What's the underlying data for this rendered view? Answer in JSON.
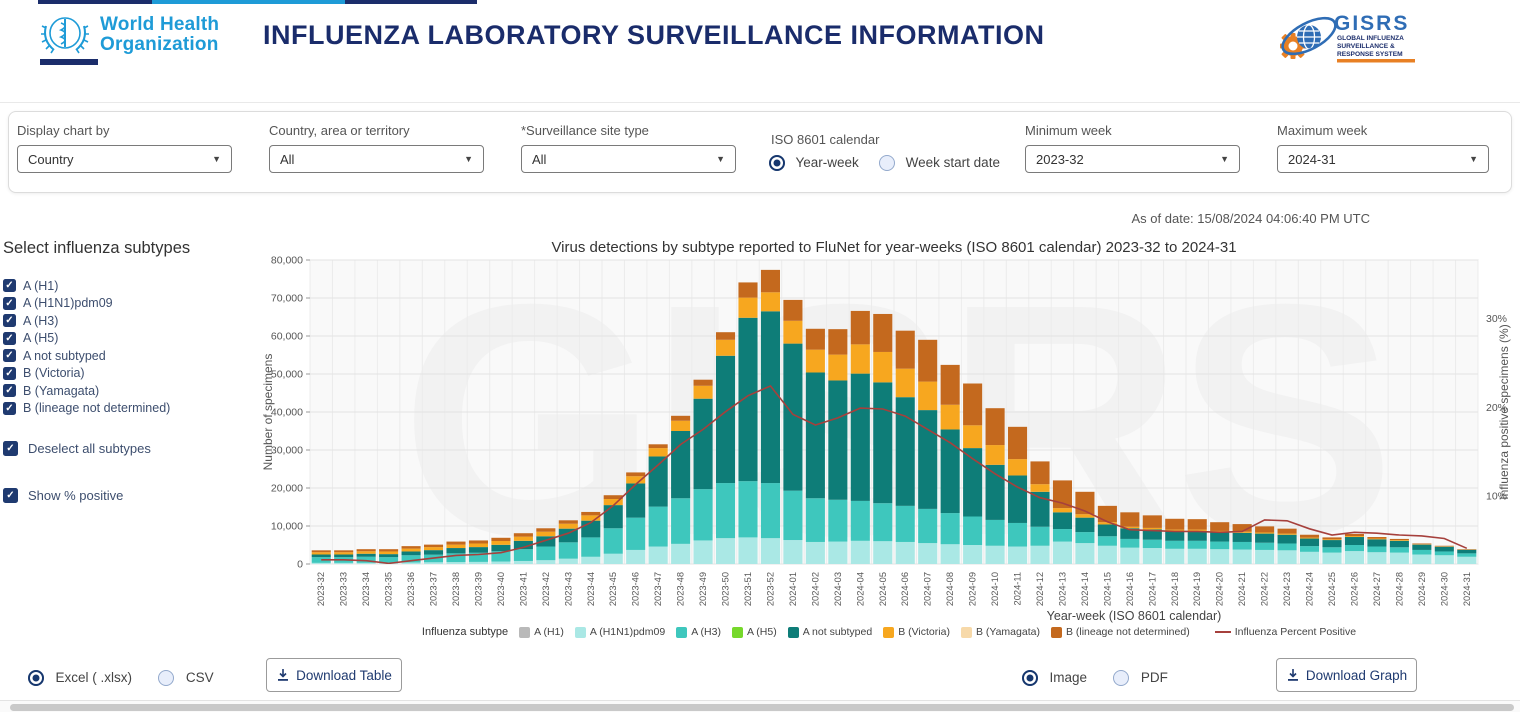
{
  "header": {
    "who_line1": "World Health",
    "who_line2": "Organization",
    "title": "INFLUENZA LABORATORY SURVEILLANCE INFORMATION",
    "gisrs_acronym": "GISRS",
    "gisrs_sub1": "GLOBAL INFLUENZA",
    "gisrs_sub2": "SURVEILLANCE &",
    "gisrs_sub3": "RESPONSE SYSTEM"
  },
  "filters": {
    "display_chart_by": {
      "label": "Display chart by",
      "value": "Country"
    },
    "country": {
      "label": "Country, area or territory",
      "value": "All"
    },
    "site_type": {
      "label": "*Surveillance site type",
      "value": "All"
    },
    "calendar": {
      "label": "ISO 8601 calendar",
      "options": [
        {
          "label": "Year-week",
          "selected": true
        },
        {
          "label": "Week start date",
          "selected": false
        }
      ]
    },
    "min_week": {
      "label": "Minimum week",
      "value": "2023-32"
    },
    "max_week": {
      "label": "Maximum week",
      "value": "2024-31"
    }
  },
  "as_of": "As of date: 15/08/2024 04:06:40 PM UTC",
  "sidebar": {
    "title": "Select influenza subtypes",
    "subtypes": [
      "A (H1)",
      "A (H1N1)pdm09",
      "A (H3)",
      "A (H5)",
      "A not subtyped",
      "B (Victoria)",
      "B (Yamagata)",
      "B (lineage not determined)"
    ],
    "deselect_all": "Deselect all subtypes",
    "show_percent": "Show % positive"
  },
  "chart_data": {
    "type": "bar",
    "subtype": "stacked bars with overlaid percent-positive line",
    "title": "Virus detections by subtype reported to FluNet for year-weeks (ISO 8601 calendar) 2023-32 to 2024-31",
    "xlabel": "Year-week (ISO 8601 calendar)",
    "ylabel": "Number of specimens",
    "y2label": "Influenza positive specimens (%)",
    "ylim": [
      0,
      80000
    ],
    "y_ticks": [
      0,
      10000,
      20000,
      30000,
      40000,
      50000,
      60000,
      70000,
      80000
    ],
    "y2_range": [
      2.33,
      36.6
    ],
    "y2_ticks": [
      10,
      20,
      30
    ],
    "grid": true,
    "watermark": "GISRS",
    "legend_title": "Influenza subtype",
    "categories": [
      "2023-32",
      "2023-33",
      "2023-34",
      "2023-35",
      "2023-36",
      "2023-37",
      "2023-38",
      "2023-39",
      "2023-40",
      "2023-41",
      "2023-42",
      "2023-43",
      "2023-44",
      "2023-45",
      "2023-46",
      "2023-47",
      "2023-48",
      "2023-49",
      "2023-50",
      "2023-51",
      "2023-52",
      "2024-01",
      "2024-02",
      "2024-03",
      "2024-04",
      "2024-05",
      "2024-06",
      "2024-07",
      "2024-08",
      "2024-09",
      "2024-10",
      "2024-11",
      "2024-12",
      "2024-13",
      "2024-14",
      "2024-15",
      "2024-16",
      "2024-17",
      "2024-18",
      "2024-19",
      "2024-20",
      "2024-21",
      "2024-22",
      "2024-23",
      "2024-24",
      "2024-25",
      "2024-26",
      "2024-27",
      "2024-28",
      "2024-29",
      "2024-30",
      "2024-31"
    ],
    "series": [
      {
        "name": "A (H1)",
        "color": "#b9b9b9",
        "values": [
          0,
          0,
          0,
          0,
          0,
          0,
          0,
          0,
          0,
          0,
          0,
          0,
          0,
          0,
          0,
          0,
          0,
          0,
          0,
          0,
          0,
          0,
          0,
          0,
          0,
          0,
          0,
          0,
          0,
          0,
          0,
          0,
          0,
          0,
          0,
          0,
          0,
          0,
          0,
          0,
          0,
          0,
          0,
          0,
          0,
          0,
          0,
          0,
          0,
          0,
          0,
          0
        ]
      },
      {
        "name": "A (H1N1)pdm09",
        "color": "#aae8e5",
        "values": [
          300,
          300,
          300,
          300,
          400,
          450,
          500,
          550,
          650,
          800,
          1000,
          1400,
          1900,
          2700,
          3700,
          4600,
          5300,
          6200,
          6800,
          7000,
          6800,
          6300,
          5800,
          5900,
          6100,
          6000,
          5800,
          5500,
          5200,
          5000,
          4800,
          4600,
          4800,
          5900,
          5500,
          4800,
          4300,
          4200,
          4000,
          4000,
          3900,
          3800,
          3700,
          3600,
          3200,
          3000,
          3400,
          3100,
          3000,
          2500,
          2300,
          1900
        ]
      },
      {
        "name": "A (H3)",
        "color": "#3ec7bd",
        "values": [
          1500,
          1500,
          1600,
          1500,
          1900,
          2000,
          2300,
          2400,
          2700,
          3100,
          3600,
          4300,
          5100,
          6700,
          8500,
          10500,
          12000,
          13500,
          14500,
          14800,
          14500,
          13000,
          11500,
          11000,
          10500,
          10000,
          9500,
          9000,
          8200,
          7500,
          6800,
          6200,
          5000,
          3300,
          2900,
          2500,
          2300,
          2200,
          2100,
          2100,
          2000,
          2000,
          1900,
          1800,
          1500,
          1400,
          1600,
          1500,
          1400,
          1200,
          1000,
          900
        ]
      },
      {
        "name": "A (H5)",
        "color": "#76d82b",
        "values": [
          0,
          0,
          0,
          0,
          0,
          0,
          0,
          0,
          0,
          0,
          0,
          0,
          0,
          0,
          0,
          0,
          0,
          0,
          0,
          0,
          0,
          0,
          0,
          0,
          0,
          0,
          0,
          0,
          0,
          0,
          0,
          0,
          0,
          0,
          0,
          0,
          0,
          0,
          0,
          0,
          0,
          0,
          0,
          0,
          0,
          0,
          0,
          0,
          0,
          0,
          0,
          0
        ]
      },
      {
        "name": "A not subtyped",
        "color": "#0e7d78",
        "values": [
          700,
          700,
          800,
          800,
          1000,
          1200,
          1400,
          1500,
          1700,
          2200,
          2700,
          3600,
          4400,
          6100,
          9000,
          13200,
          17700,
          23800,
          33500,
          43000,
          45200,
          38700,
          33100,
          31400,
          33500,
          31800,
          28600,
          26000,
          22000,
          18000,
          14500,
          12500,
          9200,
          4400,
          3800,
          3100,
          2800,
          2700,
          2600,
          2600,
          2500,
          2400,
          2400,
          2300,
          2000,
          1900,
          2100,
          1900,
          1700,
          1400,
          1250,
          950
        ]
      },
      {
        "name": "B (Victoria)",
        "color": "#f7a71f",
        "values": [
          600,
          600,
          650,
          700,
          750,
          800,
          900,
          950,
          1000,
          1100,
          1200,
          1300,
          1400,
          1600,
          1900,
          2200,
          2700,
          3400,
          4200,
          5300,
          5000,
          6000,
          6000,
          6800,
          7700,
          8000,
          7500,
          7500,
          6500,
          6000,
          5200,
          4300,
          2000,
          1100,
          900,
          600,
          400,
          400,
          350,
          350,
          300,
          300,
          300,
          300,
          250,
          200,
          250,
          200,
          200,
          100,
          100,
          50
        ]
      },
      {
        "name": "B (Yamagata)",
        "color": "#f7d9a9",
        "values": [
          0,
          0,
          0,
          0,
          0,
          0,
          0,
          0,
          0,
          0,
          0,
          0,
          0,
          0,
          0,
          0,
          0,
          0,
          0,
          0,
          0,
          0,
          0,
          0,
          0,
          0,
          0,
          0,
          0,
          0,
          0,
          0,
          0,
          0,
          0,
          0,
          0,
          0,
          0,
          0,
          0,
          0,
          0,
          0,
          0,
          0,
          0,
          0,
          0,
          0,
          0,
          0
        ]
      },
      {
        "name": "B (lineage not determined)",
        "color": "#c4691e",
        "values": [
          500,
          500,
          550,
          600,
          650,
          650,
          800,
          800,
          850,
          900,
          900,
          900,
          900,
          1000,
          1000,
          1000,
          1300,
          1600,
          2000,
          4000,
          5900,
          5500,
          5500,
          6700,
          8800,
          10000,
          10000,
          11000,
          10500,
          11000,
          9700,
          8500,
          6000,
          7300,
          5900,
          4300,
          3800,
          3300,
          2850,
          2750,
          2300,
          2000,
          1600,
          1300,
          750,
          500,
          550,
          400,
          300,
          200,
          150,
          100
        ]
      }
    ],
    "line_series": {
      "name": "Influenza Percent Positive",
      "color": "#a6403c",
      "values": [
        2.8,
        2.8,
        2.7,
        2.4,
        2.7,
        3.0,
        3.3,
        3.4,
        3.6,
        4.2,
        5.0,
        5.8,
        7.0,
        8.9,
        11.3,
        13.5,
        15.8,
        17.5,
        19.5,
        21.3,
        22.4,
        19.2,
        18.0,
        18.8,
        19.9,
        19.8,
        19.0,
        17.5,
        16.0,
        14.2,
        12.5,
        11.0,
        9.8,
        9.2,
        8.3,
        7.1,
        6.2,
        6.1,
        6.0,
        6.0,
        5.9,
        6.0,
        7.3,
        7.2,
        6.3,
        5.6,
        5.9,
        5.8,
        5.6,
        5.5,
        5.2,
        4.1
      ]
    }
  },
  "downloads": {
    "table_formats": [
      {
        "label": "Excel ( .xlsx)",
        "selected": true
      },
      {
        "label": "CSV",
        "selected": false
      }
    ],
    "table_button": "Download Table",
    "graph_formats": [
      {
        "label": "Image",
        "selected": true
      },
      {
        "label": "PDF",
        "selected": false
      }
    ],
    "graph_button": "Download Graph"
  },
  "colors": {
    "title_navy": "#1a2c6b",
    "who_blue": "#1e9bd7",
    "gisrs_blue": "#2f6db5",
    "gisrs_orange": "#e88024",
    "control_navy": "#16376e",
    "percent_line": "#a6403c"
  }
}
